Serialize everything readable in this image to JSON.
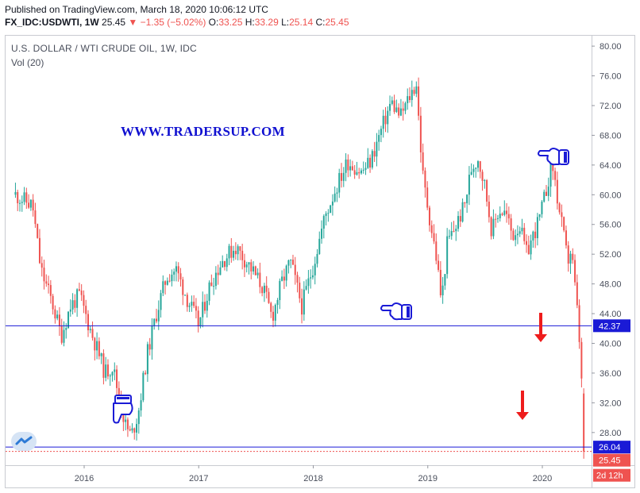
{
  "header": {
    "line1": "Published on TradingView.com, March 18, 2020 10:06:12 UTC",
    "symbol": "FX_IDC:USDWTI, 1W",
    "price": "25.45",
    "change": "▼ −1.35 (−5.02%)",
    "o_label": "O:",
    "o_value": "33.25",
    "h_label": "H:",
    "h_value": "33.29",
    "l_label": "L:",
    "l_value": "25.14",
    "c_label": "C:",
    "c_value": "25.45"
  },
  "legend": {
    "title": "U.S. DOLLAR / WTI CRUDE OIL, 1W, IDC",
    "volume": "Vol (20)"
  },
  "watermark": "WWW.TRADERSUP.COM",
  "colors": {
    "up": "#26a69a",
    "down": "#ef5350",
    "support_line": "#1a1ad6",
    "arrow": "#ee1c1c",
    "hand_icon": "#1a1ad6"
  },
  "chart_data": {
    "type": "candlestick",
    "title": "U.S. DOLLAR / WTI CRUDE OIL, 1W, IDC",
    "y_ticks": [
      28,
      32,
      36,
      40,
      44,
      48,
      52,
      56,
      60,
      64,
      68,
      72,
      76,
      80
    ],
    "y_tick_labels": [
      "28.00",
      "32.00",
      "36.00",
      "40.00",
      "44.00",
      "48.00",
      "52.00",
      "56.00",
      "60.00",
      "64.00",
      "68.00",
      "72.00",
      "76.00",
      "80.00"
    ],
    "ylim": [
      23.6,
      81.4
    ],
    "x_ticks": [
      "2016",
      "2017",
      "2018",
      "2019",
      "2020"
    ],
    "horizontal_lines": [
      {
        "value": 42.37,
        "label": "42.37"
      },
      {
        "value": 26.04,
        "label": "26.04"
      }
    ],
    "last_price": {
      "value": 25.45,
      "label": "25.45"
    },
    "countdown_label": "2d 12h",
    "path": [
      [
        2015.4,
        60.0
      ],
      [
        2015.55,
        58.5
      ],
      [
        2015.62,
        50.0
      ],
      [
        2015.72,
        45.5
      ],
      [
        2015.8,
        41.0
      ],
      [
        2015.88,
        45.0
      ],
      [
        2015.96,
        46.5
      ],
      [
        2016.05,
        42.0
      ],
      [
        2016.13,
        38.5
      ],
      [
        2016.18,
        36.0
      ],
      [
        2016.25,
        37.0
      ],
      [
        2016.3,
        33.0
      ],
      [
        2016.36,
        29.0
      ],
      [
        2016.41,
        27.5
      ],
      [
        2016.47,
        30.5
      ],
      [
        2016.55,
        38.5
      ],
      [
        2016.63,
        44.0
      ],
      [
        2016.72,
        49.0
      ],
      [
        2016.8,
        50.0
      ],
      [
        2016.9,
        46.0
      ],
      [
        2017.0,
        42.5
      ],
      [
        2017.1,
        48.0
      ],
      [
        2017.2,
        51.0
      ],
      [
        2017.32,
        53.0
      ],
      [
        2017.44,
        50.5
      ],
      [
        2017.56,
        47.5
      ],
      [
        2017.64,
        43.5
      ],
      [
        2017.72,
        48.0
      ],
      [
        2017.8,
        51.0
      ],
      [
        2017.85,
        48.0
      ],
      [
        2017.9,
        45.0
      ],
      [
        2018.0,
        50.5
      ],
      [
        2018.1,
        57.0
      ],
      [
        2018.2,
        61.0
      ],
      [
        2018.3,
        64.5
      ],
      [
        2018.42,
        63.0
      ],
      [
        2018.5,
        64.5
      ],
      [
        2018.6,
        69.0
      ],
      [
        2018.68,
        72.5
      ],
      [
        2018.76,
        70.5
      ],
      [
        2018.85,
        73.5
      ],
      [
        2018.9,
        75.0
      ],
      [
        2018.93,
        68.0
      ],
      [
        2018.96,
        62.0
      ],
      [
        2019.02,
        56.5
      ],
      [
        2019.08,
        51.0
      ],
      [
        2019.12,
        45.5
      ],
      [
        2019.17,
        53.5
      ],
      [
        2019.25,
        56.0
      ],
      [
        2019.32,
        58.5
      ],
      [
        2019.38,
        63.5
      ],
      [
        2019.44,
        65.0
      ],
      [
        2019.5,
        61.0
      ],
      [
        2019.56,
        55.0
      ],
      [
        2019.62,
        58.0
      ],
      [
        2019.68,
        57.5
      ],
      [
        2019.74,
        54.5
      ],
      [
        2019.8,
        56.0
      ],
      [
        2019.86,
        52.0
      ],
      [
        2019.92,
        54.5
      ],
      [
        2019.98,
        57.0
      ],
      [
        2020.04,
        61.0
      ],
      [
        2020.08,
        64.5
      ],
      [
        2020.1,
        63.0
      ],
      [
        2020.14,
        58.5
      ],
      [
        2020.18,
        55.0
      ],
      [
        2020.22,
        51.0
      ],
      [
        2020.25,
        52.5
      ],
      [
        2020.27,
        50.0
      ],
      [
        2020.3,
        45.0
      ],
      [
        2020.32,
        41.5
      ],
      [
        2020.34,
        35.0
      ],
      [
        2020.35,
        33.25
      ],
      [
        2020.36,
        25.45
      ]
    ]
  }
}
